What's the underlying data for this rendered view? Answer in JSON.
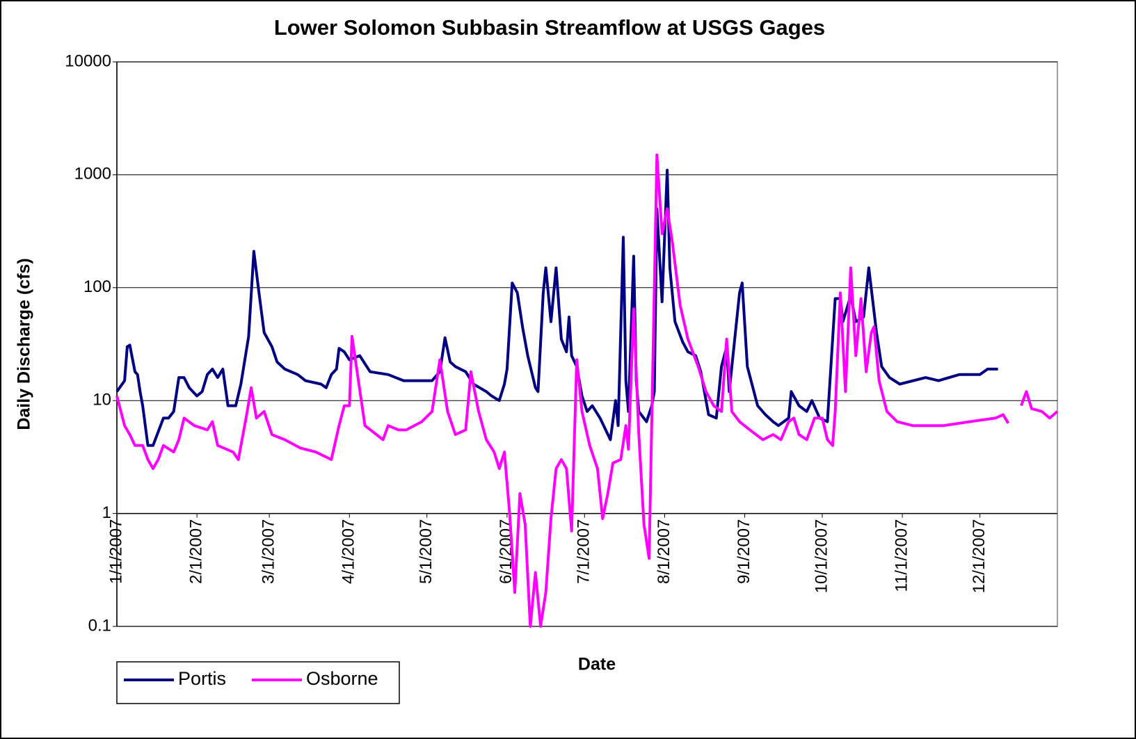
{
  "chart_data": {
    "type": "line",
    "title": "Lower Solomon Subbasin Streamflow at USGS Gages",
    "x_label": "Date",
    "y_label": "Daily Discharge (cfs)",
    "y_log": true,
    "grid": true,
    "legend": "bottom-left",
    "xaxis_at": 1,
    "ylim": [
      0.1,
      10000
    ],
    "yticks": [
      0.1,
      1,
      10,
      100,
      1000,
      10000
    ],
    "xlim": [
      "2007-01-01",
      "2007-12-31"
    ],
    "xticks": [
      {
        "value": "2007-01-01",
        "label": "1/1/2007"
      },
      {
        "value": "2007-02-01",
        "label": "2/1/2007"
      },
      {
        "value": "2007-03-01",
        "label": "3/1/2007"
      },
      {
        "value": "2007-04-01",
        "label": "4/1/2007"
      },
      {
        "value": "2007-05-01",
        "label": "5/1/2007"
      },
      {
        "value": "2007-06-01",
        "label": "6/1/2007"
      },
      {
        "value": "2007-07-01",
        "label": "7/1/2007"
      },
      {
        "value": "2007-08-01",
        "label": "8/1/2007"
      },
      {
        "value": "2007-09-01",
        "label": "9/1/2007"
      },
      {
        "value": "2007-10-01",
        "label": "10/1/2007"
      },
      {
        "value": "2007-11-01",
        "label": "11/1/2007"
      },
      {
        "value": "2007-12-01",
        "label": "12/1/2007"
      }
    ],
    "series": [
      {
        "name": "Portis",
        "color": "#000080",
        "x": [
          "2007-01-01",
          "2007-01-04",
          "2007-01-05",
          "2007-01-06",
          "2007-01-08",
          "2007-01-09",
          "2007-01-10",
          "2007-01-11",
          "2007-01-13",
          "2007-01-15",
          "2007-01-19",
          "2007-01-21",
          "2007-01-23",
          "2007-01-25",
          "2007-01-27",
          "2007-01-29",
          "2007-02-01",
          "2007-02-03",
          "2007-02-05",
          "2007-02-07",
          "2007-02-09",
          "2007-02-11",
          "2007-02-13",
          "2007-02-16",
          "2007-02-18",
          "2007-02-21",
          "2007-02-23",
          "2007-02-25",
          "2007-02-27",
          "2007-03-02",
          "2007-03-04",
          "2007-03-07",
          "2007-03-12",
          "2007-03-15",
          "2007-03-21",
          "2007-03-23",
          "2007-03-25",
          "2007-03-27",
          "2007-03-28",
          "2007-03-30",
          "2007-04-01",
          "2007-04-05",
          "2007-04-09",
          "2007-04-16",
          "2007-04-22",
          "2007-05-03",
          "2007-05-06",
          "2007-05-08",
          "2007-05-10",
          "2007-05-12",
          "2007-05-16",
          "2007-05-19",
          "2007-05-24",
          "2007-05-26",
          "2007-05-29",
          "2007-05-31",
          "2007-06-01",
          "2007-06-03",
          "2007-06-05",
          "2007-06-07",
          "2007-06-09",
          "2007-06-12",
          "2007-06-13",
          "2007-06-15",
          "2007-06-16",
          "2007-06-18",
          "2007-06-20",
          "2007-06-22",
          "2007-06-24",
          "2007-06-25",
          "2007-06-26",
          "2007-06-28",
          "2007-06-30",
          "2007-07-02",
          "2007-07-04",
          "2007-07-07",
          "2007-07-11",
          "2007-07-13",
          "2007-07-14",
          "2007-07-16",
          "2007-07-17",
          "2007-07-18",
          "2007-07-20",
          "2007-07-21",
          "2007-07-22",
          "2007-07-25",
          "2007-07-27",
          "2007-07-28",
          "2007-07-29",
          "2007-07-31",
          "2007-08-02",
          "2007-08-03",
          "2007-08-05",
          "2007-08-08",
          "2007-08-10",
          "2007-08-13",
          "2007-08-15",
          "2007-08-18",
          "2007-08-21",
          "2007-08-23",
          "2007-08-25",
          "2007-08-26",
          "2007-08-30",
          "2007-08-31",
          "2007-09-02",
          "2007-09-06",
          "2007-09-09",
          "2007-09-12",
          "2007-09-14",
          "2007-09-18",
          "2007-09-19",
          "2007-09-22",
          "2007-09-25",
          "2007-09-27",
          "2007-09-30",
          "2007-10-03",
          "2007-10-06",
          "2007-10-08",
          "2007-10-09",
          "2007-10-12",
          "2007-10-14",
          "2007-10-17",
          "2007-10-19",
          "2007-10-22",
          "2007-10-24",
          "2007-10-27",
          "2007-10-31",
          "2007-11-10",
          "2007-11-15",
          "2007-11-23",
          "2007-12-01",
          "2007-12-04",
          "2007-12-08"
        ],
        "values": [
          12,
          15,
          30,
          31,
          18,
          17,
          12,
          9,
          4,
          4,
          7,
          7,
          8,
          16,
          16,
          13,
          11,
          12,
          17,
          19,
          16,
          19,
          9,
          9,
          14,
          37,
          210,
          90,
          40,
          30,
          22,
          19,
          17,
          15,
          14,
          13,
          17,
          19,
          29,
          27,
          23,
          25,
          18,
          17,
          15,
          15,
          18,
          36,
          22,
          20,
          18,
          14,
          12,
          11,
          10,
          14,
          19,
          110,
          90,
          45,
          25,
          13,
          12,
          90,
          150,
          50,
          150,
          35,
          27,
          55,
          25,
          20,
          11,
          8,
          9,
          7,
          4.5,
          10,
          6,
          280,
          15,
          8,
          190,
          15,
          8,
          6.5,
          9,
          12,
          500,
          75,
          1100,
          150,
          50,
          33,
          27,
          25,
          18,
          7.5,
          7,
          20,
          30,
          12,
          90,
          110,
          20,
          9,
          7.5,
          6.5,
          6,
          7,
          12,
          9,
          8,
          10,
          7,
          6.5,
          80,
          80,
          50,
          85,
          50,
          55,
          150,
          40,
          20,
          16,
          14,
          16,
          15,
          17,
          17,
          19,
          19
        ]
      },
      {
        "name": "Osborne",
        "color": "#ff00ff",
        "x": [
          "2007-01-01",
          "2007-01-04",
          "2007-01-06",
          "2007-01-08",
          "2007-01-11",
          "2007-01-13",
          "2007-01-15",
          "2007-01-17",
          "2007-01-19",
          "2007-01-23",
          "2007-01-25",
          "2007-01-27",
          "2007-01-31",
          "2007-02-05",
          "2007-02-07",
          "2007-02-09",
          "2007-02-15",
          "2007-02-17",
          "2007-02-20",
          "2007-02-22",
          "2007-02-24",
          "2007-02-27",
          "2007-03-02",
          "2007-03-07",
          "2007-03-13",
          "2007-03-19",
          "2007-03-25",
          "2007-03-28",
          "2007-03-30",
          "2007-04-01",
          "2007-04-02",
          "2007-04-07",
          "2007-04-14",
          "2007-04-16",
          "2007-04-20",
          "2007-04-23",
          "2007-04-29",
          "2007-05-03",
          "2007-05-06",
          "2007-05-09",
          "2007-05-12",
          "2007-05-16",
          "2007-05-18",
          "2007-05-21",
          "2007-05-24",
          "2007-05-27",
          "2007-05-29",
          "2007-05-31",
          "2007-06-02",
          "2007-06-04",
          "2007-06-06",
          "2007-06-08",
          "2007-06-10",
          "2007-06-12",
          "2007-06-14",
          "2007-06-16",
          "2007-06-18",
          "2007-06-20",
          "2007-06-22",
          "2007-06-24",
          "2007-06-26",
          "2007-06-28",
          "2007-06-30",
          "2007-07-03",
          "2007-07-06",
          "2007-07-08",
          "2007-07-10",
          "2007-07-12",
          "2007-07-15",
          "2007-07-17",
          "2007-07-18",
          "2007-07-20",
          "2007-07-22",
          "2007-07-24",
          "2007-07-26",
          "2007-07-29",
          "2007-07-31",
          "2007-08-02",
          "2007-08-04",
          "2007-08-07",
          "2007-08-10",
          "2007-08-14",
          "2007-08-17",
          "2007-08-20",
          "2007-08-23",
          "2007-08-25",
          "2007-08-27",
          "2007-08-30",
          "2007-09-03",
          "2007-09-08",
          "2007-09-12",
          "2007-09-15",
          "2007-09-18",
          "2007-09-20",
          "2007-09-22",
          "2007-09-25",
          "2007-09-28",
          "2007-10-01",
          "2007-10-03",
          "2007-10-05",
          "2007-10-06",
          "2007-10-08",
          "2007-10-10",
          "2007-10-12",
          "2007-10-14",
          "2007-10-16",
          "2007-10-18",
          "2007-10-20",
          "2007-10-21",
          "2007-10-23",
          "2007-10-26",
          "2007-10-30",
          "2007-11-05",
          "2007-11-17",
          "2007-11-27",
          "2007-12-07",
          "2007-12-10",
          "2007-12-12",
          "2007-12-15",
          "2007-12-17",
          "2007-12-19",
          "2007-12-21",
          "2007-12-25",
          "2007-12-28",
          "2007-12-31"
        ],
        "values": [
          11,
          6,
          5,
          4,
          4,
          3,
          2.5,
          3,
          4,
          3.5,
          4.5,
          7,
          6,
          5.5,
          6.5,
          4,
          3.5,
          3,
          7,
          13,
          7,
          8,
          5,
          4.5,
          3.8,
          3.5,
          3,
          6,
          9,
          9,
          37,
          6,
          4.5,
          6,
          5.5,
          5.5,
          6.5,
          8,
          23,
          8,
          5,
          5.5,
          18,
          8,
          4.5,
          3.5,
          2.5,
          3.5,
          1,
          0.2,
          1.5,
          0.8,
          0.1,
          0.3,
          0.1,
          0.2,
          0.9,
          2.5,
          3,
          2.5,
          0.7,
          23,
          8,
          4,
          2.5,
          0.9,
          1.5,
          2.8,
          3,
          6,
          3.7,
          65,
          5,
          0.8,
          0.4,
          1500,
          300,
          500,
          250,
          70,
          35,
          20,
          12,
          9,
          8,
          35,
          8,
          6.5,
          5.5,
          4.5,
          5,
          4.5,
          6.5,
          7,
          5,
          4.5,
          7,
          7,
          4.5,
          4,
          8,
          90,
          12,
          150,
          25,
          80,
          18,
          40,
          45,
          15,
          8,
          6.5,
          6,
          6,
          6.5,
          7,
          7.5,
          6.3,
          null,
          9,
          12,
          8.5,
          8,
          7,
          8
        ]
      }
    ]
  }
}
